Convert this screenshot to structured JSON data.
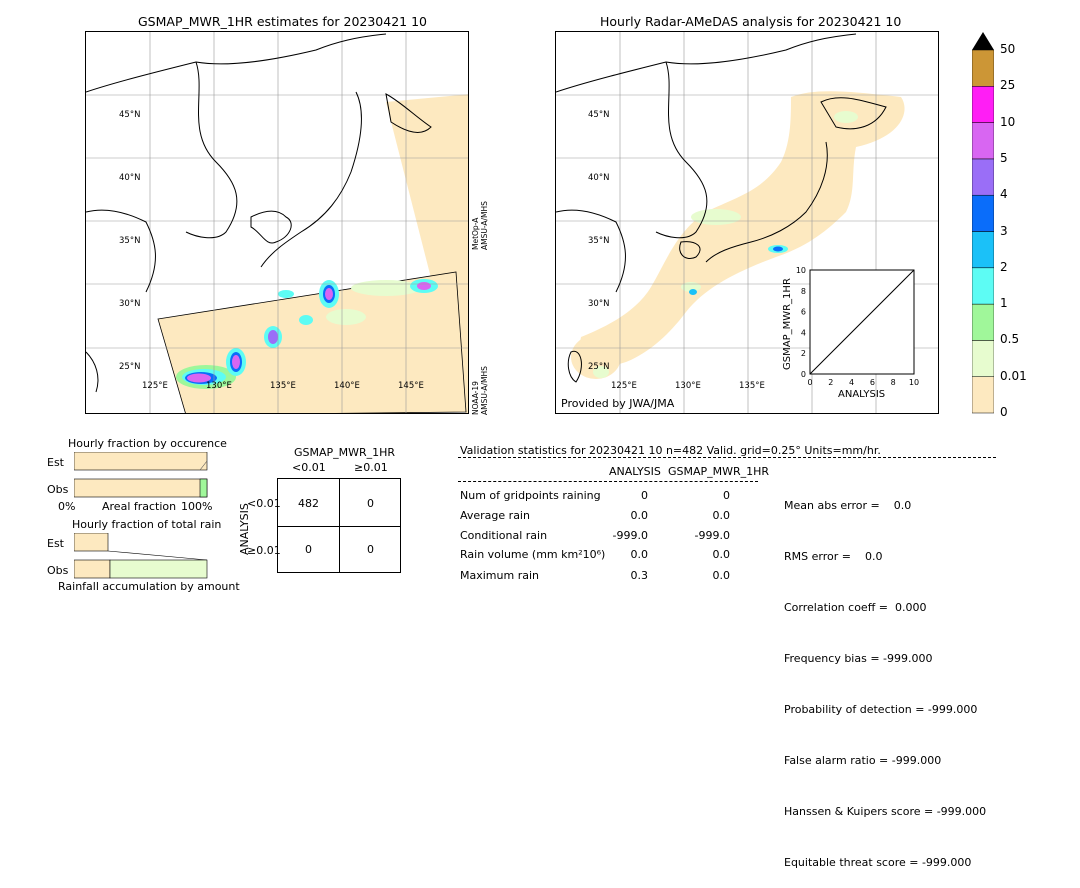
{
  "left_map": {
    "title": "GSMAP_MWR_1HR estimates for 20230421 10",
    "lat_labels": [
      "45°N",
      "40°N",
      "35°N",
      "30°N",
      "25°N"
    ],
    "lon_labels": [
      "125°E",
      "130°E",
      "135°E",
      "140°E",
      "145°E"
    ],
    "sat_label_top": "MetOp-A\nAMSU-A/MHS",
    "sat_label_bottom": "NOAA-19\nAMSU-A/MHS"
  },
  "right_map": {
    "title": "Hourly Radar-AMeDAS analysis for 20230421 10",
    "lat_labels": [
      "45°N",
      "40°N",
      "35°N",
      "30°N",
      "25°N"
    ],
    "lon_labels": [
      "125°E",
      "130°E",
      "135°E"
    ],
    "provider": "Provided by JWA/JMA"
  },
  "colorbar": {
    "labels": [
      "0",
      "0.01",
      "0.5",
      "1",
      "2",
      "3",
      "4",
      "5",
      "10",
      "25",
      "50"
    ],
    "colors": [
      "#fde9c0",
      "#e7fccf",
      "#a0f79a",
      "#5dfcf4",
      "#1bc1f8",
      "#0a6dfa",
      "#9a6ef7",
      "#d866f2",
      "#ff1ef5",
      "#cc9636"
    ]
  },
  "scatter_inset": {
    "ylabel": "GSMAP_MWR_1HR",
    "xlabel": "ANALYSIS",
    "ticks": [
      "0",
      "2",
      "4",
      "6",
      "8",
      "10"
    ]
  },
  "fraction_occurrence": {
    "title": "Hourly fraction by occurence",
    "rows": [
      "Est",
      "Obs"
    ],
    "x_left": "0%",
    "x_mid": "Areal fraction",
    "x_right": "100%"
  },
  "fraction_total": {
    "title": "Hourly fraction of total rain",
    "rows": [
      "Est",
      "Obs"
    ],
    "footer": "Rainfall accumulation by amount"
  },
  "contingency": {
    "title": "GSMAP_MWR_1HR",
    "col_labels": [
      "<0.01",
      "≥0.01"
    ],
    "row_axis": "ANALYSIS",
    "row_labels": [
      "<0.01",
      "≥0.01"
    ],
    "cells": [
      [
        "482",
        "0"
      ],
      [
        "0",
        "0"
      ]
    ]
  },
  "validation": {
    "header": "Validation statistics for 20230421 10  n=482 Valid. grid=0.25° Units=mm/hr.",
    "col_analysis": "ANALYSIS",
    "col_gsmap": "GSMAP_MWR_1HR",
    "rows": [
      {
        "label": "Num of gridpoints raining",
        "analysis": "0",
        "gsmap": "0"
      },
      {
        "label": "Average rain",
        "analysis": "0.0",
        "gsmap": "0.0"
      },
      {
        "label": "Conditional rain",
        "analysis": "-999.0",
        "gsmap": "-999.0"
      },
      {
        "label": "Rain volume (mm km²10⁶)",
        "analysis": "0.0",
        "gsmap": "0.0"
      },
      {
        "label": "Maximum rain",
        "analysis": "0.3",
        "gsmap": "0.0"
      }
    ],
    "scores": [
      "Mean abs error =    0.0",
      "RMS error =    0.0",
      "Correlation coeff =  0.000",
      "Frequency bias = -999.000",
      "Probability of detection = -999.000",
      "False alarm ratio = -999.000",
      "Hanssen & Kuipers score = -999.000",
      "Equitable threat score = -999.000"
    ]
  },
  "chart_data": {
    "type": "scatter",
    "title": "",
    "xlabel": "ANALYSIS",
    "ylabel": "GSMAP_MWR_1HR",
    "xlim": [
      0,
      10
    ],
    "ylim": [
      0,
      10
    ],
    "x": [],
    "y": [],
    "reference_line": "1:1 diagonal"
  }
}
